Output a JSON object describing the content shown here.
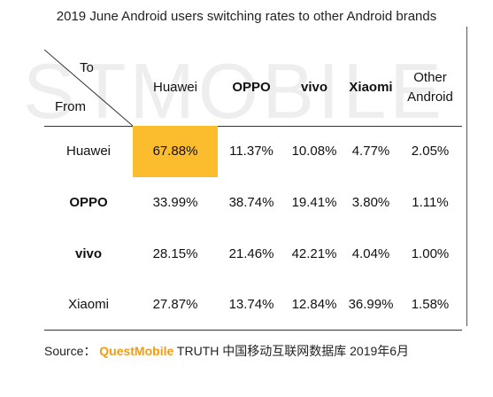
{
  "title": "2019 June Android users switching rates to other Android brands",
  "watermark": "STMOBILE",
  "corner": {
    "to": "To",
    "from": "From"
  },
  "source": {
    "prefix": "Source： ",
    "brand": "QuestMobile",
    "suffix": " TRUTH 中国移动互联网数据库 2019年6月"
  },
  "chart_data": {
    "type": "table",
    "title": "2019 June Android users switching rates to other Android brands",
    "columns": [
      {
        "label": "Huawei",
        "bold": false
      },
      {
        "label": "OPPO",
        "bold": true
      },
      {
        "label": "vivo",
        "bold": true
      },
      {
        "label": "Xiaomi",
        "bold": true
      },
      {
        "label": "Other Android",
        "bold": false
      }
    ],
    "rows": [
      {
        "label": "Huawei",
        "bold": false,
        "values": [
          "67.88%",
          "11.37%",
          "10.08%",
          "4.77%",
          "2.05%"
        ]
      },
      {
        "label": "OPPO",
        "bold": true,
        "values": [
          "33.99%",
          "38.74%",
          "19.41%",
          "3.80%",
          "1.11%"
        ]
      },
      {
        "label": "vivo",
        "bold": true,
        "values": [
          "28.15%",
          "21.46%",
          "42.21%",
          "4.04%",
          "1.00%"
        ]
      },
      {
        "label": "Xiaomi",
        "bold": false,
        "values": [
          "27.87%",
          "13.74%",
          "12.84%",
          "36.99%",
          "1.58%"
        ]
      }
    ],
    "highlight": {
      "row": 0,
      "col": 0,
      "color": "#fbbc2d"
    }
  }
}
